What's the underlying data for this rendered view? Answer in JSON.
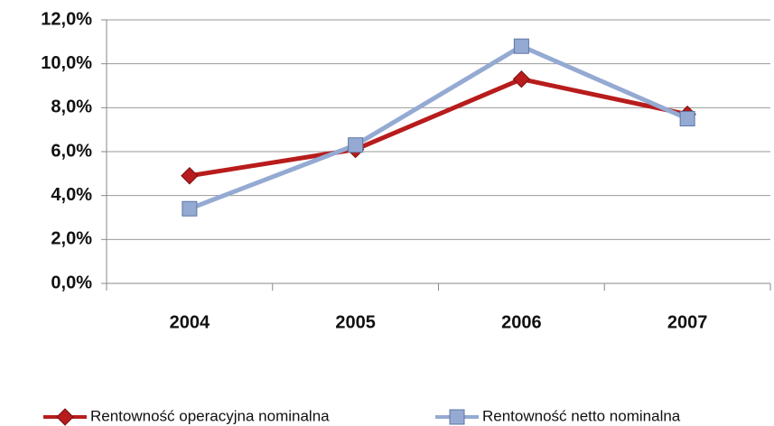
{
  "chart_data": {
    "type": "line",
    "categories": [
      "2004",
      "2005",
      "2006",
      "2007"
    ],
    "series": [
      {
        "name": "Rentowność operacyjna nominalna",
        "color": "#b81c1c",
        "marker": "diamond",
        "values": [
          4.9,
          6.1,
          9.3,
          7.7
        ]
      },
      {
        "name": "Rentowność netto nominalna",
        "color": "#94aad2",
        "marker": "square",
        "values": [
          3.4,
          6.3,
          10.8,
          7.5
        ]
      }
    ],
    "ylim": [
      0,
      12
    ],
    "yticks": [
      {
        "value": 0,
        "label": "0,0%"
      },
      {
        "value": 2,
        "label": "2,0%"
      },
      {
        "value": 4,
        "label": "4,0%"
      },
      {
        "value": 6,
        "label": "6,0%"
      },
      {
        "value": 8,
        "label": "8,0%"
      },
      {
        "value": 10,
        "label": "10,0%"
      },
      {
        "value": 12,
        "label": "12,0%"
      }
    ],
    "grid": true,
    "legend": "bottom"
  }
}
